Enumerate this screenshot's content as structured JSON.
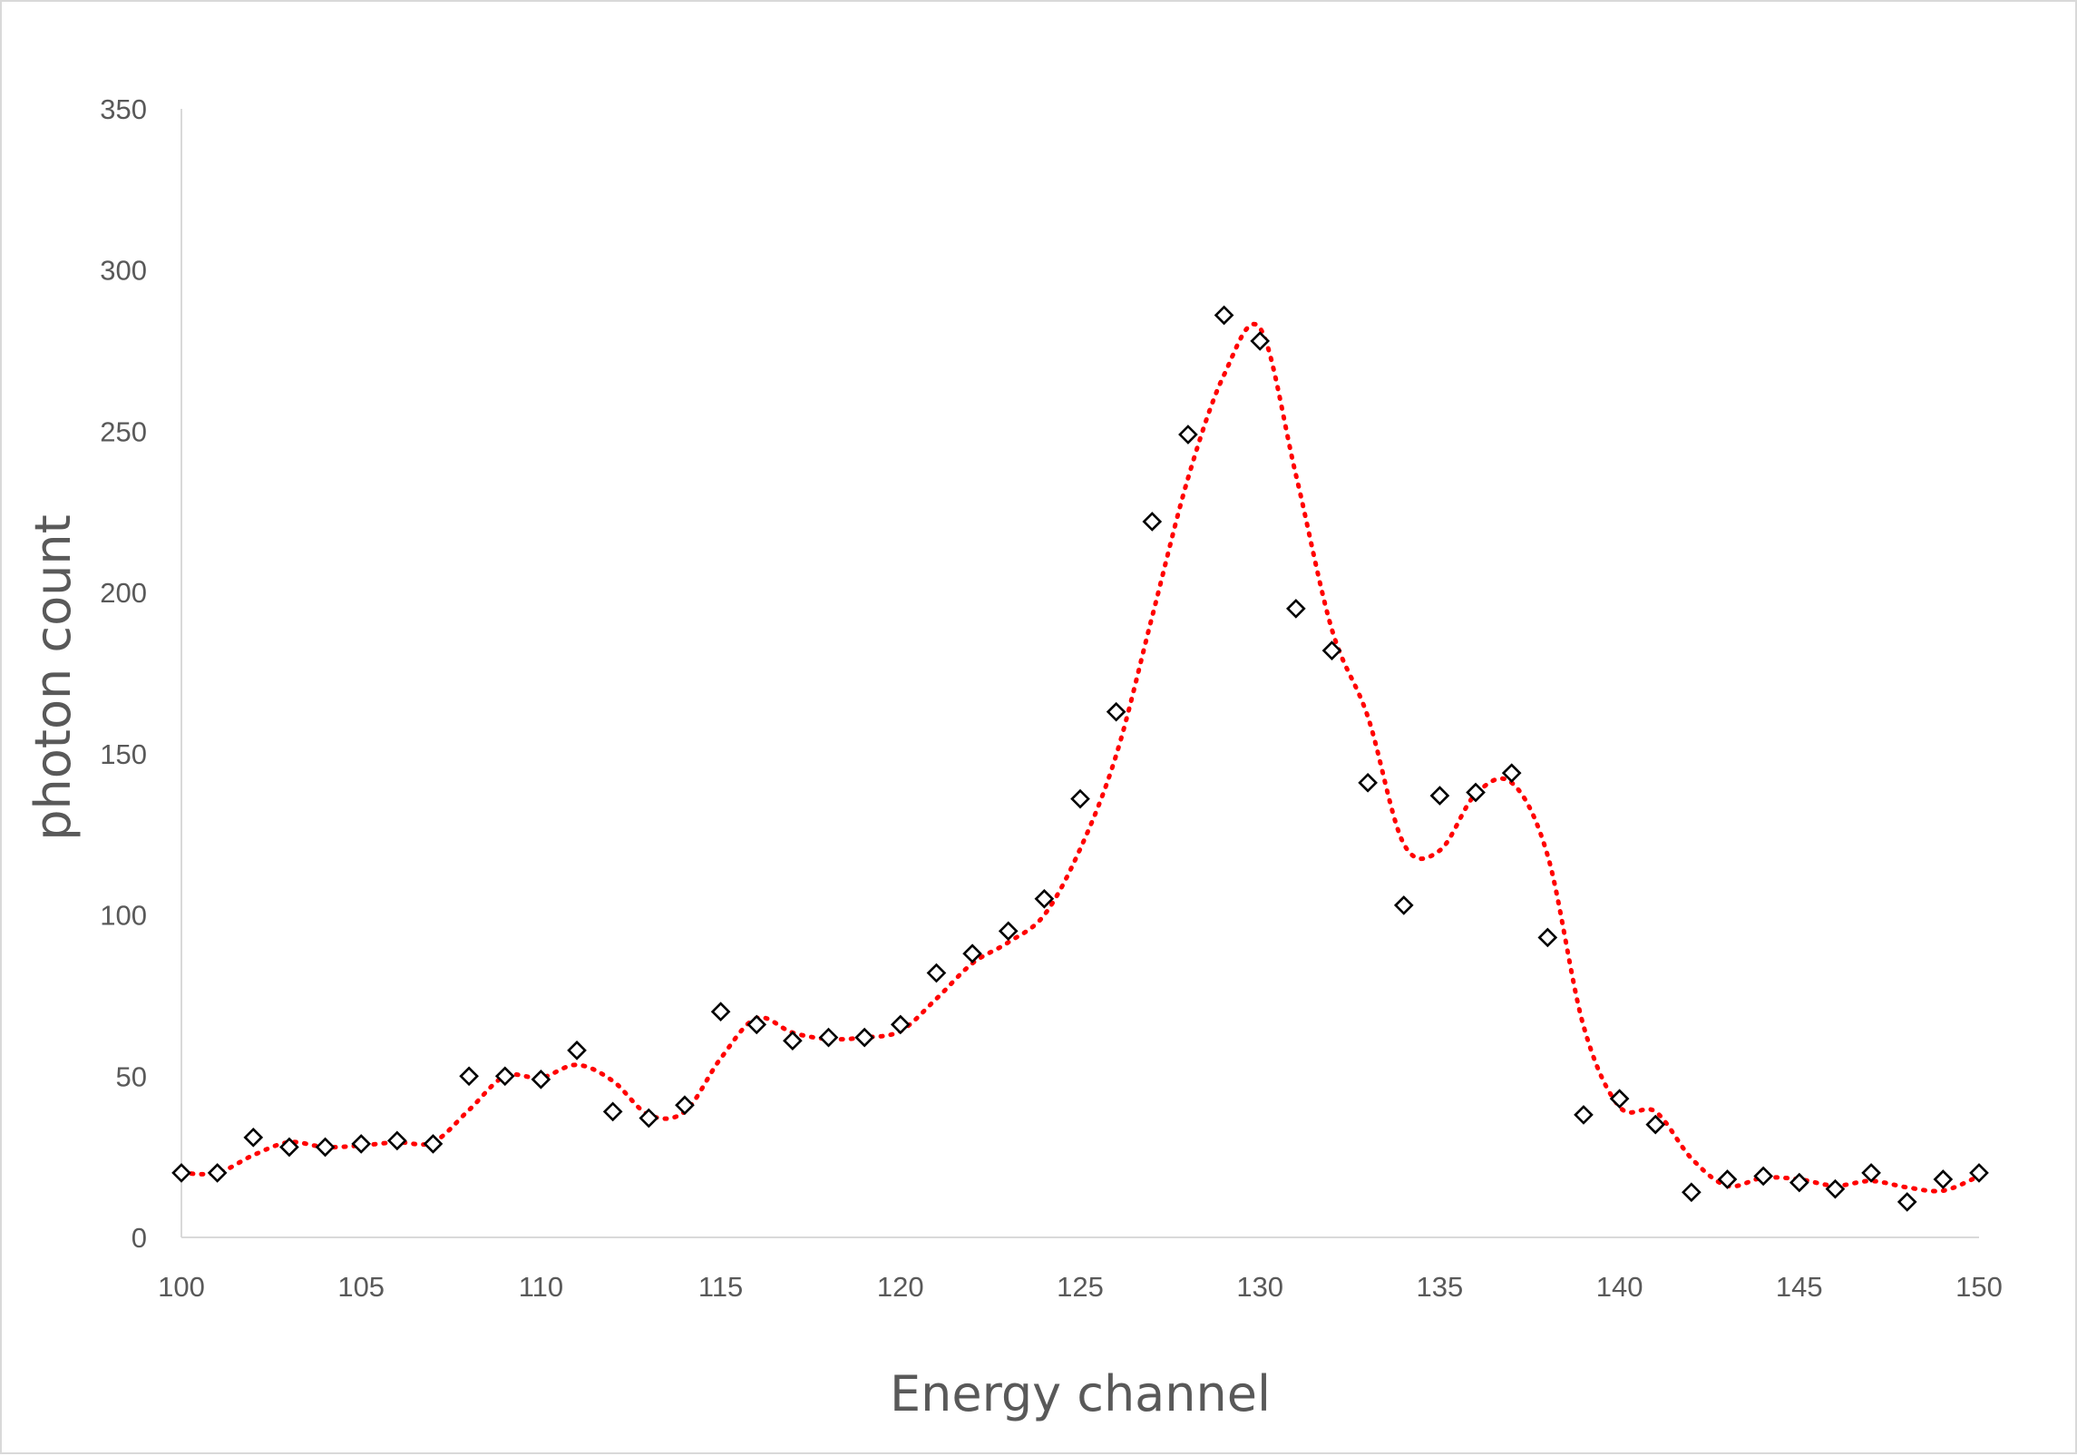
{
  "chart_data": {
    "type": "scatter",
    "title": "",
    "xlabel": "Energy channel",
    "ylabel": "photon count",
    "xlim": [
      100,
      150
    ],
    "ylim": [
      0,
      350
    ],
    "x_ticks": [
      100,
      105,
      110,
      115,
      120,
      125,
      130,
      135,
      140,
      145,
      150
    ],
    "y_ticks": [
      0,
      50,
      100,
      150,
      200,
      250,
      300,
      350
    ],
    "grid": false,
    "legend": "none",
    "series": [
      {
        "marker": "diamond-open",
        "color": "#000000",
        "trendline": "moving-average",
        "trendline_color": "#ff0000",
        "trendline_style": "dotted",
        "x": [
          100,
          101,
          102,
          103,
          104,
          105,
          106,
          107,
          108,
          109,
          110,
          111,
          112,
          113,
          114,
          115,
          116,
          117,
          118,
          119,
          120,
          121,
          122,
          123,
          124,
          125,
          126,
          127,
          128,
          129,
          130,
          131,
          132,
          133,
          134,
          135,
          136,
          137,
          138,
          139,
          140,
          141,
          142,
          143,
          144,
          145,
          146,
          147,
          148,
          149,
          150
        ],
        "y": [
          20,
          20,
          31,
          28,
          28,
          29,
          30,
          29,
          50,
          50,
          49,
          58,
          39,
          37,
          41,
          70,
          66,
          61,
          62,
          62,
          66,
          82,
          88,
          95,
          105,
          136,
          163,
          222,
          249,
          286,
          278,
          195,
          182,
          141,
          103,
          137,
          138,
          144,
          93,
          38,
          43,
          35,
          14,
          18,
          19,
          17,
          15,
          20,
          11,
          18,
          20
        ]
      }
    ]
  }
}
